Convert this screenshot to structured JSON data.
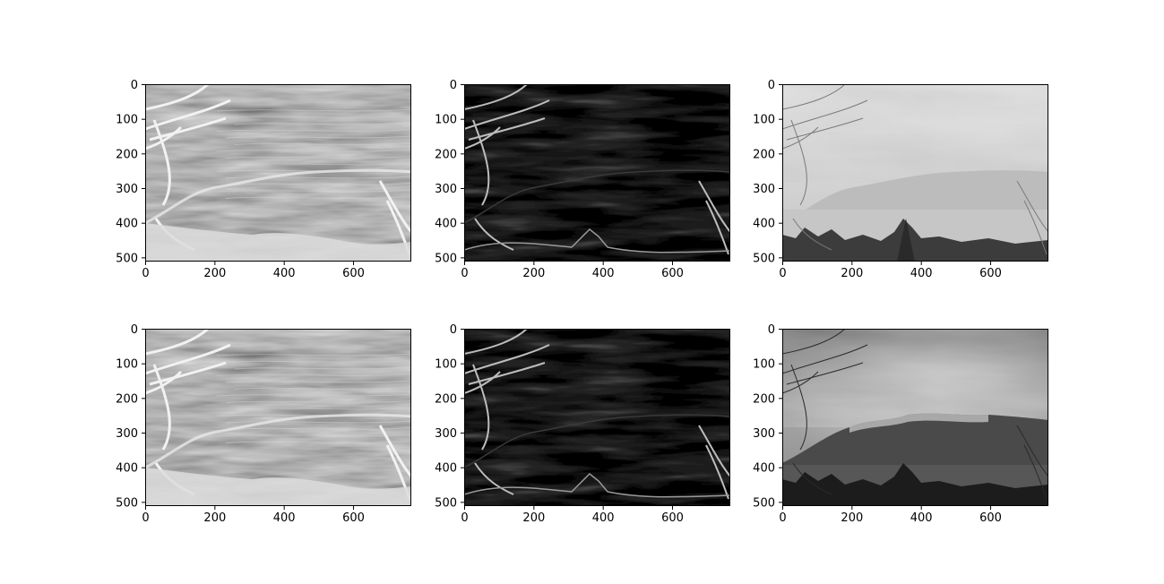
{
  "figure": {
    "background": "#ffffff"
  },
  "chart_data": [
    {
      "type": "heatmap",
      "colormap": "gray",
      "content": "edge magnitude map (bright dense textures)",
      "x_range": [
        0,
        768
      ],
      "y_range": [
        0,
        512
      ],
      "y_inverted": true,
      "xticks": [
        0,
        200,
        400,
        600
      ],
      "yticks": [
        0,
        100,
        200,
        300,
        400,
        500
      ],
      "xtick_labels": [
        "0",
        "200",
        "400",
        "600"
      ],
      "ytick_labels": [
        "0",
        "100",
        "200",
        "300",
        "400",
        "500"
      ],
      "grid": false,
      "style": "edge-bright"
    },
    {
      "type": "heatmap",
      "colormap": "gray",
      "content": "edge map (mostly dark, bright branches)",
      "x_range": [
        0,
        768
      ],
      "y_range": [
        0,
        512
      ],
      "y_inverted": true,
      "xticks": [
        0,
        200,
        400,
        600
      ],
      "yticks": [
        0,
        100,
        200,
        300,
        400,
        500
      ],
      "xtick_labels": [
        "0",
        "200",
        "400",
        "600"
      ],
      "ytick_labels": [
        "0",
        "100",
        "200",
        "300",
        "400",
        "500"
      ],
      "grid": false,
      "style": "edge-dark"
    },
    {
      "type": "heatmap",
      "colormap": "gray",
      "content": "low-contrast grayscale photo (hazy sky, mountains, trees)",
      "x_range": [
        0,
        768
      ],
      "y_range": [
        0,
        512
      ],
      "y_inverted": true,
      "xticks": [
        0,
        200,
        400,
        600
      ],
      "yticks": [
        0,
        100,
        200,
        300,
        400,
        500
      ],
      "xtick_labels": [
        "0",
        "200",
        "400",
        "600"
      ],
      "ytick_labels": [
        "0",
        "100",
        "200",
        "300",
        "400",
        "500"
      ],
      "grid": false,
      "style": "photo-hazy"
    },
    {
      "type": "heatmap",
      "colormap": "gray",
      "content": "edge magnitude map (bright dense textures)",
      "x_range": [
        0,
        768
      ],
      "y_range": [
        0,
        512
      ],
      "y_inverted": true,
      "xticks": [
        0,
        200,
        400,
        600
      ],
      "yticks": [
        0,
        100,
        200,
        300,
        400,
        500
      ],
      "xtick_labels": [
        "0",
        "200",
        "400",
        "600"
      ],
      "ytick_labels": [
        "0",
        "100",
        "200",
        "300",
        "400",
        "500"
      ],
      "grid": false,
      "style": "edge-bright"
    },
    {
      "type": "heatmap",
      "colormap": "gray",
      "content": "edge map (mostly dark, faint contours)",
      "x_range": [
        0,
        768
      ],
      "y_range": [
        0,
        512
      ],
      "y_inverted": true,
      "xticks": [
        0,
        200,
        400,
        600
      ],
      "yticks": [
        0,
        100,
        200,
        300,
        400,
        500
      ],
      "xtick_labels": [
        "0",
        "200",
        "400",
        "600"
      ],
      "ytick_labels": [
        "0",
        "100",
        "200",
        "300",
        "400",
        "500"
      ],
      "grid": false,
      "style": "edge-dark"
    },
    {
      "type": "heatmap",
      "colormap": "gray",
      "content": "contrast-enhanced grayscale photo (clouds, mountains, lake, trees)",
      "x_range": [
        0,
        768
      ],
      "y_range": [
        0,
        512
      ],
      "y_inverted": true,
      "xticks": [
        0,
        200,
        400,
        600
      ],
      "yticks": [
        0,
        100,
        200,
        300,
        400,
        500
      ],
      "xtick_labels": [
        "0",
        "200",
        "400",
        "600"
      ],
      "ytick_labels": [
        "0",
        "100",
        "200",
        "300",
        "400",
        "500"
      ],
      "grid": false,
      "style": "photo-contrast"
    }
  ]
}
